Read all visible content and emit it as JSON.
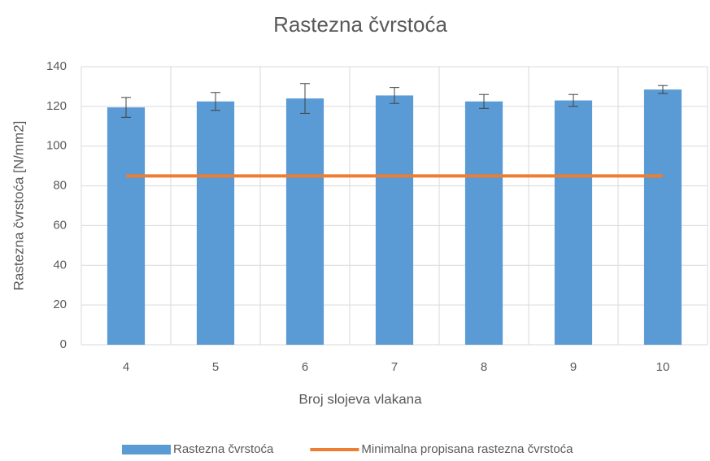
{
  "chart_data": {
    "type": "bar",
    "title": "Rastezna čvrstoća",
    "x_label": "Broj slojeva vlakana",
    "y_label": "Rastezna čvrstoća [N/mm2]",
    "categories": [
      "4",
      "5",
      "6",
      "7",
      "8",
      "9",
      "10"
    ],
    "series": [
      {
        "name": "Rastezna čvrstoća",
        "type": "bar",
        "color": "#5b9bd5",
        "values": [
          119.5,
          122.5,
          124,
          125.5,
          122.5,
          123,
          128.5
        ],
        "errors": [
          5,
          4.5,
          7.5,
          4,
          3.5,
          3,
          2
        ]
      },
      {
        "name": "Minimalna propisana rastezna čvrstoća",
        "type": "line",
        "color": "#ed7d31",
        "values": [
          85,
          85,
          85,
          85,
          85,
          85,
          85
        ]
      }
    ],
    "ylim": [
      0,
      140
    ],
    "yticks": [
      0,
      20,
      40,
      60,
      80,
      100,
      120,
      140
    ],
    "grid": true,
    "legend": "bottom"
  }
}
